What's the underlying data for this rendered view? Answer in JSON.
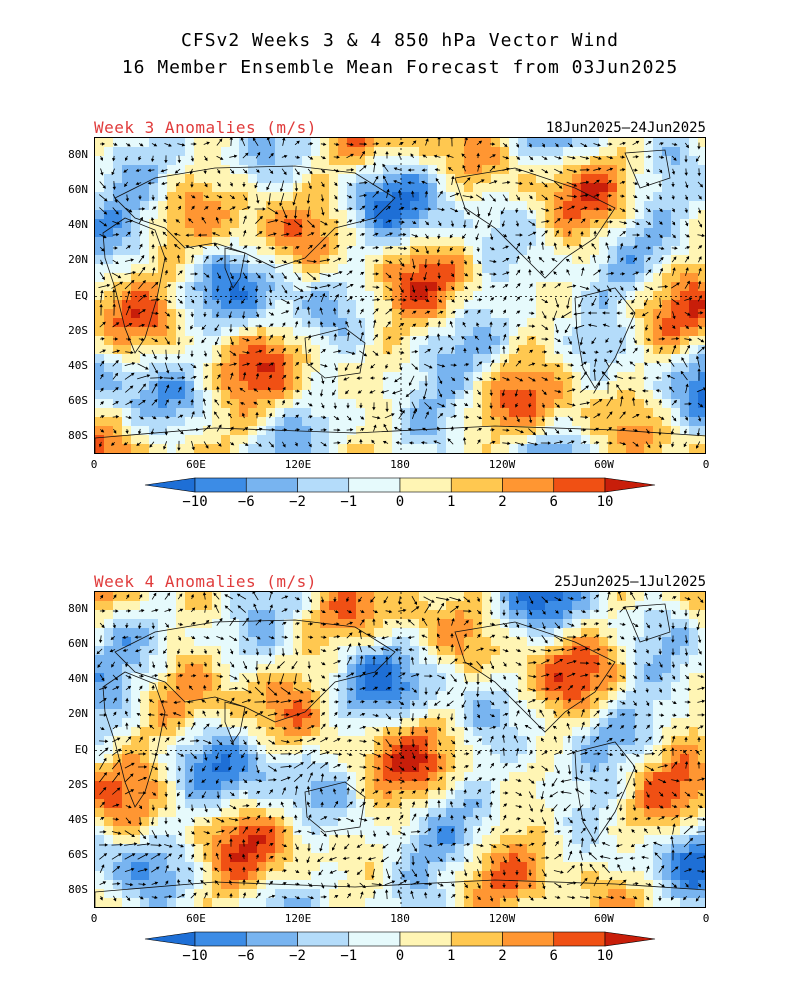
{
  "title": {
    "line1": "CFSv2 Weeks 3 & 4 850 hPa Vector Wind",
    "line2": "16 Member Ensemble Mean Forecast from 03Jun2025"
  },
  "colors": {
    "label_red": "#e03c3c",
    "scale": [
      "#1e6fd6",
      "#3c8ce6",
      "#78b4f0",
      "#b4dcfa",
      "#e6fafc",
      "#fff5b4",
      "#ffc850",
      "#ff9632",
      "#f05014",
      "#c81e0a"
    ]
  },
  "colorbar": {
    "ticks": [
      "−10",
      "−6",
      "−2",
      "−1",
      "0",
      "1",
      "2",
      "6",
      "10"
    ]
  },
  "axes": {
    "lat_ticks": [
      "80N",
      "60N",
      "40N",
      "20N",
      "EQ",
      "20S",
      "40S",
      "60S",
      "80S"
    ],
    "lon_ticks": [
      "0",
      "60E",
      "120E",
      "180",
      "120W",
      "60W",
      "0"
    ]
  },
  "panels": [
    {
      "label": "Week 3 Anomalies (m/s)",
      "dates": "18Jun2025‒24Jun2025"
    },
    {
      "label": "Week 4 Anomalies (m/s)",
      "dates": "25Jun2025‒1Jul2025"
    }
  ]
}
